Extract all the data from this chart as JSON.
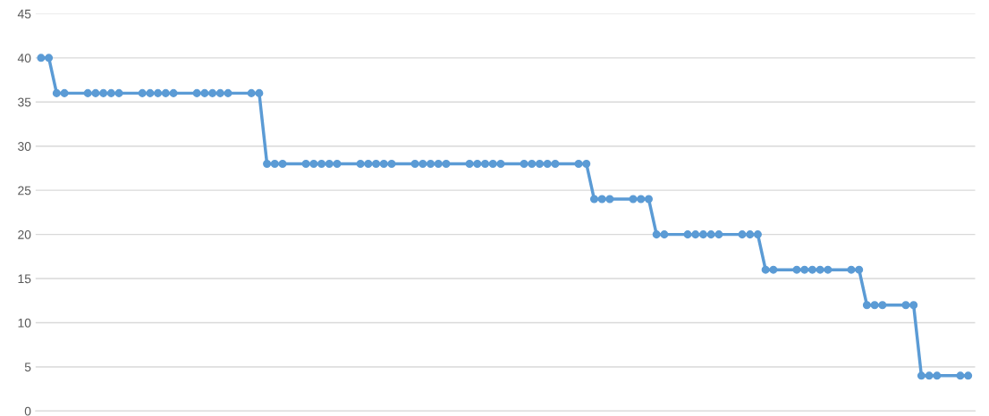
{
  "chart_data": {
    "type": "line",
    "categories": [
      null,
      null,
      null,
      null,
      null,
      null,
      null,
      null,
      null,
      null,
      null,
      null,
      null,
      null,
      null,
      null,
      null,
      null,
      null,
      null,
      null,
      null,
      null,
      null,
      null,
      null,
      null,
      null,
      null,
      null,
      null,
      null,
      null,
      null,
      null,
      null,
      null,
      null,
      null,
      null,
      null,
      null,
      null,
      null,
      null,
      null,
      null,
      null,
      null,
      null,
      null,
      null,
      null,
      null,
      null,
      null,
      null,
      null,
      null,
      null,
      null,
      null,
      null,
      null,
      null,
      null,
      null,
      null,
      null,
      null,
      null,
      null,
      null,
      null,
      null,
      null,
      null,
      null,
      null,
      null,
      null,
      null,
      null,
      null,
      null,
      null,
      null,
      null,
      null,
      null,
      null,
      null,
      null,
      null,
      null,
      null,
      null,
      null,
      null,
      null,
      null,
      null,
      null,
      null,
      null,
      null,
      null,
      null,
      null,
      null,
      null,
      null,
      null,
      null,
      null,
      null,
      null,
      null,
      null,
      null
    ],
    "series": [
      {
        "color": "#5b9bd5",
        "values": [
          40,
          40,
          36,
          36,
          null,
          null,
          36,
          36,
          36,
          36,
          36,
          null,
          null,
          36,
          36,
          36,
          36,
          36,
          null,
          null,
          36,
          36,
          36,
          36,
          36,
          null,
          null,
          36,
          36,
          28,
          28,
          28,
          null,
          null,
          28,
          28,
          28,
          28,
          28,
          null,
          null,
          28,
          28,
          28,
          28,
          28,
          null,
          null,
          28,
          28,
          28,
          28,
          28,
          null,
          null,
          28,
          28,
          28,
          28,
          28,
          null,
          null,
          28,
          28,
          28,
          28,
          28,
          null,
          null,
          28,
          28,
          24,
          24,
          24,
          null,
          null,
          24,
          24,
          24,
          20,
          20,
          null,
          null,
          20,
          20,
          20,
          20,
          20,
          null,
          null,
          20,
          20,
          20,
          16,
          16,
          null,
          null,
          16,
          16,
          16,
          16,
          16,
          null,
          null,
          16,
          16,
          12,
          12,
          12,
          null,
          null,
          12,
          12,
          4,
          4,
          4,
          null,
          null,
          4,
          4
        ]
      }
    ],
    "ylim": [
      0,
      45
    ],
    "yticks": [
      0,
      5,
      10,
      15,
      20,
      25,
      30,
      35,
      40,
      45
    ],
    "grid": "y",
    "marker": "circle",
    "line_style": "solid"
  }
}
